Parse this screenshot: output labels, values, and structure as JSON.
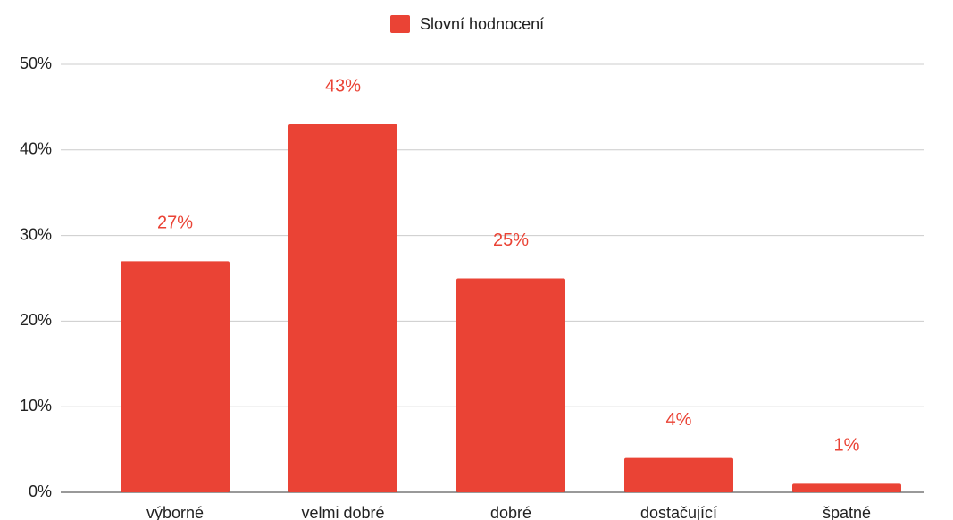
{
  "chart_data": {
    "type": "bar",
    "categories": [
      "výborné",
      "velmi dobré",
      "dobré",
      "dostačující",
      "špatné"
    ],
    "series": [
      {
        "name": "Slovní hodnocení",
        "color": "#ea4335",
        "values": [
          27,
          43,
          25,
          4,
          1
        ],
        "value_labels": [
          "27%",
          "43%",
          "25%",
          "4%",
          "1%"
        ]
      }
    ],
    "ylim": [
      0,
      50
    ],
    "yticks": [
      {
        "value": 0,
        "label": "0%"
      },
      {
        "value": 10,
        "label": "10%"
      },
      {
        "value": 20,
        "label": "20%"
      },
      {
        "value": 30,
        "label": "30%"
      },
      {
        "value": 40,
        "label": "40%"
      },
      {
        "value": 50,
        "label": "50%"
      }
    ],
    "grid": true,
    "legend": "top"
  }
}
